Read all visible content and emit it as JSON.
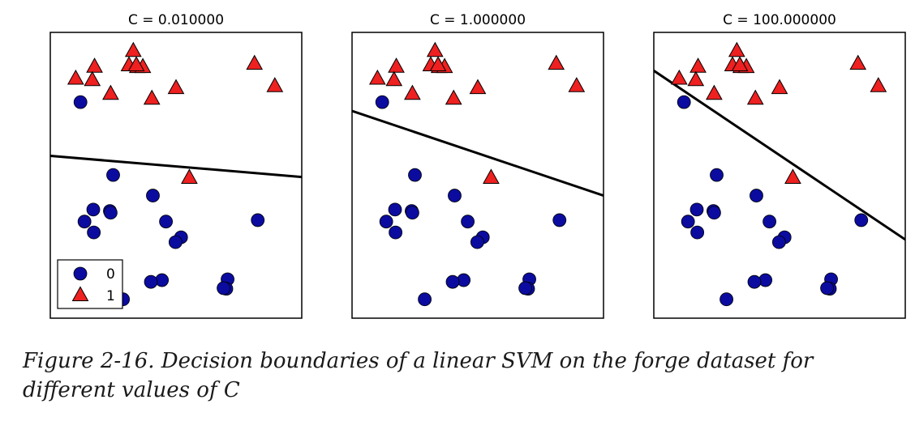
{
  "chart_data": {
    "type": "scatter",
    "panels": [
      {
        "title": "C = 0.010000",
        "boundary": {
          "y_at_xmin": 0.432,
          "y_at_xmax": 0.506
        }
      },
      {
        "title": "C = 1.000000",
        "boundary": {
          "y_at_xmin": 0.275,
          "y_at_xmax": 0.571
        }
      },
      {
        "title": "C = 100.000000",
        "boundary": {
          "y_at_xmin": 0.134,
          "y_at_xmax": 0.725
        }
      }
    ],
    "xlim": [
      0,
      1
    ],
    "ylim": [
      0,
      1
    ],
    "axis_ticks_shown": false,
    "grid": false,
    "legend": {
      "placement": "lower-left",
      "shown_in_panel": 0,
      "entries": [
        {
          "label": "0",
          "marker": "circle",
          "color": "#0b0c9f"
        },
        {
          "label": "1",
          "marker": "triangle",
          "color": "#ee2020"
        }
      ]
    },
    "series": [
      {
        "name": "0",
        "marker": "circle",
        "color": "#0b0c9f",
        "points": [
          [
            0.12,
            0.244
          ],
          [
            0.25,
            0.499
          ],
          [
            0.408,
            0.571
          ],
          [
            0.171,
            0.62
          ],
          [
            0.237,
            0.625
          ],
          [
            0.24,
            0.631
          ],
          [
            0.136,
            0.662
          ],
          [
            0.46,
            0.662
          ],
          [
            0.825,
            0.657
          ],
          [
            0.173,
            0.7
          ],
          [
            0.52,
            0.717
          ],
          [
            0.498,
            0.734
          ],
          [
            0.705,
            0.864
          ],
          [
            0.444,
            0.867
          ],
          [
            0.4,
            0.873
          ],
          [
            0.7,
            0.897
          ],
          [
            0.689,
            0.895
          ],
          [
            0.289,
            0.934
          ]
        ]
      },
      {
        "name": "1",
        "marker": "triangle",
        "color": "#ee2020",
        "points": [
          [
            0.33,
            0.066
          ],
          [
            0.313,
            0.116
          ],
          [
            0.346,
            0.122
          ],
          [
            0.368,
            0.122
          ],
          [
            0.342,
            0.116
          ],
          [
            0.176,
            0.121
          ],
          [
            0.812,
            0.111
          ],
          [
            0.101,
            0.163
          ],
          [
            0.167,
            0.168
          ],
          [
            0.893,
            0.189
          ],
          [
            0.5,
            0.196
          ],
          [
            0.24,
            0.216
          ],
          [
            0.404,
            0.233
          ],
          [
            0.553,
            0.51
          ]
        ]
      }
    ]
  },
  "caption": {
    "text": "Figure 2-16. Decision boundaries of a linear SVM on the forge dataset for different values of C"
  }
}
